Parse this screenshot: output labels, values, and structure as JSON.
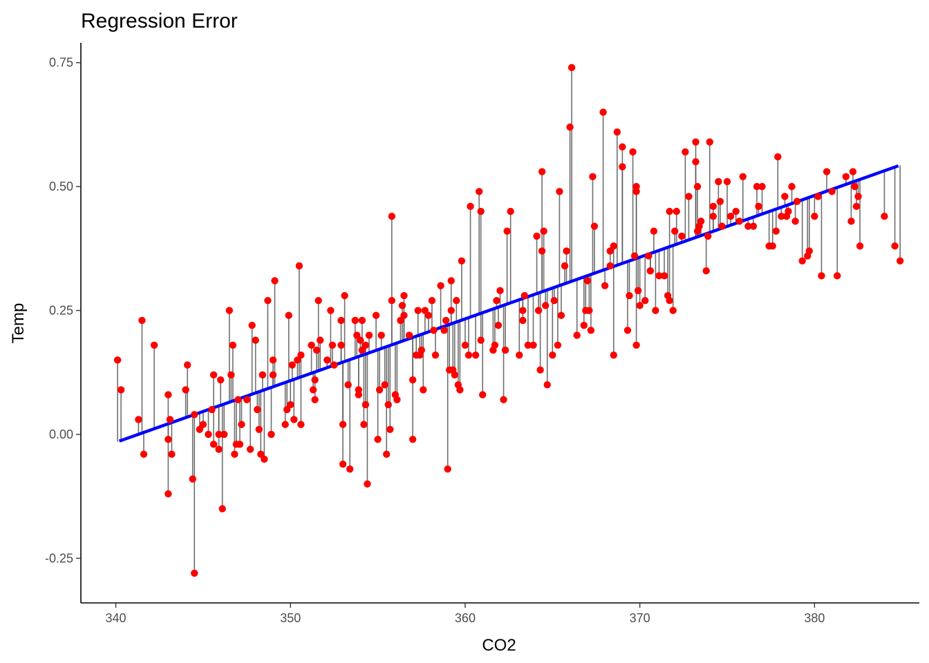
{
  "chart_data": {
    "type": "scatter",
    "title": "Regression Error",
    "xlabel": "CO2",
    "ylabel": "Temp",
    "xlim": [
      338,
      386
    ],
    "ylim": [
      -0.34,
      0.79
    ],
    "xticks": [
      340,
      350,
      360,
      370,
      380
    ],
    "xtick_labels": [
      "340",
      "350",
      "360",
      "370",
      "380"
    ],
    "yticks": [
      -0.25,
      0,
      0.25,
      0.5,
      0.75
    ],
    "ytick_labels": [
      "-0.25",
      "0.00",
      "0.25",
      "0.50",
      "0.75"
    ],
    "grid": false,
    "legend": "none",
    "point_color": "#ff0000",
    "line_color": "#0000ff",
    "residual_color": "#555555",
    "regression": {
      "slope": 0.01245,
      "intercept": -4.249,
      "x_range": [
        340.2,
        384.8
      ]
    },
    "points": [
      [
        340.1,
        0.15
      ],
      [
        340.3,
        0.09
      ],
      [
        341.3,
        0.03
      ],
      [
        341.5,
        0.23
      ],
      [
        341.6,
        -0.04
      ],
      [
        342.2,
        0.18
      ],
      [
        343.0,
        0.08
      ],
      [
        343.0,
        -0.01
      ],
      [
        343.1,
        0.03
      ],
      [
        343.2,
        -0.04
      ],
      [
        343.0,
        -0.12
      ],
      [
        344.0,
        0.09
      ],
      [
        344.1,
        0.14
      ],
      [
        344.4,
        -0.09
      ],
      [
        344.5,
        0.04
      ],
      [
        344.5,
        -0.28
      ],
      [
        344.8,
        0.01
      ],
      [
        345.0,
        0.02
      ],
      [
        345.3,
        0.0
      ],
      [
        345.5,
        0.05
      ],
      [
        345.6,
        0.12
      ],
      [
        345.6,
        -0.02
      ],
      [
        345.9,
        0.0
      ],
      [
        345.9,
        -0.03
      ],
      [
        346.0,
        0.11
      ],
      [
        346.1,
        -0.15
      ],
      [
        346.2,
        0.0
      ],
      [
        346.5,
        0.25
      ],
      [
        346.6,
        0.12
      ],
      [
        346.7,
        0.18
      ],
      [
        346.8,
        -0.04
      ],
      [
        346.9,
        -0.02
      ],
      [
        347.0,
        0.07
      ],
      [
        347.1,
        -0.02
      ],
      [
        347.2,
        0.02
      ],
      [
        347.5,
        0.07
      ],
      [
        347.7,
        -0.03
      ],
      [
        347.8,
        0.22
      ],
      [
        348.0,
        0.19
      ],
      [
        348.1,
        0.05
      ],
      [
        348.2,
        0.01
      ],
      [
        348.3,
        -0.04
      ],
      [
        348.4,
        0.12
      ],
      [
        348.5,
        -0.05
      ],
      [
        348.7,
        0.27
      ],
      [
        348.9,
        0.0
      ],
      [
        349.0,
        0.12
      ],
      [
        349.0,
        0.15
      ],
      [
        349.1,
        0.31
      ],
      [
        349.7,
        0.02
      ],
      [
        349.8,
        0.05
      ],
      [
        349.9,
        0.24
      ],
      [
        350.0,
        0.06
      ],
      [
        350.1,
        0.14
      ],
      [
        350.2,
        0.03
      ],
      [
        350.4,
        0.15
      ],
      [
        350.5,
        0.34
      ],
      [
        350.6,
        0.02
      ],
      [
        350.6,
        0.16
      ],
      [
        351.2,
        0.18
      ],
      [
        351.3,
        0.09
      ],
      [
        351.4,
        0.07
      ],
      [
        351.4,
        0.11
      ],
      [
        351.5,
        0.17
      ],
      [
        351.6,
        0.27
      ],
      [
        351.7,
        0.19
      ],
      [
        352.1,
        0.15
      ],
      [
        352.3,
        0.25
      ],
      [
        352.4,
        0.18
      ],
      [
        352.5,
        0.14
      ],
      [
        352.9,
        0.18
      ],
      [
        352.9,
        0.23
      ],
      [
        353.0,
        0.02
      ],
      [
        353.0,
        -0.06
      ],
      [
        353.1,
        0.28
      ],
      [
        353.3,
        0.1
      ],
      [
        353.4,
        -0.07
      ],
      [
        353.7,
        0.23
      ],
      [
        353.8,
        0.2
      ],
      [
        353.9,
        0.09
      ],
      [
        353.9,
        0.08
      ],
      [
        354.0,
        0.19
      ],
      [
        354.1,
        0.23
      ],
      [
        354.1,
        0.17
      ],
      [
        354.2,
        0.02
      ],
      [
        354.3,
        0.18
      ],
      [
        354.3,
        0.06
      ],
      [
        354.4,
        -0.1
      ],
      [
        354.5,
        0.2
      ],
      [
        354.9,
        0.24
      ],
      [
        355.0,
        -0.01
      ],
      [
        355.1,
        0.09
      ],
      [
        355.2,
        0.2
      ],
      [
        355.4,
        0.1
      ],
      [
        355.5,
        -0.04
      ],
      [
        355.6,
        0.06
      ],
      [
        355.7,
        0.01
      ],
      [
        355.8,
        0.44
      ],
      [
        355.8,
        0.27
      ],
      [
        356.0,
        0.08
      ],
      [
        356.1,
        0.07
      ],
      [
        356.3,
        0.23
      ],
      [
        356.4,
        0.26
      ],
      [
        356.5,
        0.28
      ],
      [
        356.5,
        0.24
      ],
      [
        356.8,
        0.2
      ],
      [
        357.0,
        0.11
      ],
      [
        357.0,
        -0.01
      ],
      [
        357.2,
        0.16
      ],
      [
        357.3,
        0.25
      ],
      [
        357.4,
        0.16
      ],
      [
        357.5,
        0.17
      ],
      [
        357.6,
        0.09
      ],
      [
        357.7,
        0.25
      ],
      [
        357.9,
        0.24
      ],
      [
        358.1,
        0.27
      ],
      [
        358.2,
        0.21
      ],
      [
        358.3,
        0.16
      ],
      [
        358.6,
        0.3
      ],
      [
        358.8,
        0.21
      ],
      [
        358.9,
        0.23
      ],
      [
        359.0,
        -0.07
      ],
      [
        359.1,
        0.13
      ],
      [
        359.2,
        0.25
      ],
      [
        359.2,
        0.31
      ],
      [
        359.3,
        0.13
      ],
      [
        359.4,
        0.12
      ],
      [
        359.5,
        0.27
      ],
      [
        359.6,
        0.1
      ],
      [
        359.7,
        0.09
      ],
      [
        359.8,
        0.35
      ],
      [
        360.0,
        0.18
      ],
      [
        360.2,
        0.16
      ],
      [
        360.3,
        0.46
      ],
      [
        360.6,
        0.16
      ],
      [
        360.8,
        0.49
      ],
      [
        360.9,
        0.45
      ],
      [
        360.9,
        0.19
      ],
      [
        361.0,
        0.08
      ],
      [
        361.6,
        0.17
      ],
      [
        361.7,
        0.18
      ],
      [
        361.8,
        0.27
      ],
      [
        361.9,
        0.22
      ],
      [
        362.0,
        0.29
      ],
      [
        362.2,
        0.07
      ],
      [
        362.3,
        0.17
      ],
      [
        362.4,
        0.41
      ],
      [
        362.6,
        0.45
      ],
      [
        363.1,
        0.16
      ],
      [
        363.3,
        0.25
      ],
      [
        363.3,
        0.23
      ],
      [
        363.4,
        0.28
      ],
      [
        363.6,
        0.18
      ],
      [
        363.9,
        0.18
      ],
      [
        364.1,
        0.4
      ],
      [
        364.2,
        0.25
      ],
      [
        364.3,
        0.13
      ],
      [
        364.4,
        0.53
      ],
      [
        364.4,
        0.37
      ],
      [
        364.5,
        0.41
      ],
      [
        364.6,
        0.26
      ],
      [
        364.7,
        0.1
      ],
      [
        365.0,
        0.16
      ],
      [
        365.1,
        0.27
      ],
      [
        365.3,
        0.18
      ],
      [
        365.4,
        0.49
      ],
      [
        365.5,
        0.24
      ],
      [
        365.7,
        0.34
      ],
      [
        365.8,
        0.37
      ],
      [
        366.0,
        0.62
      ],
      [
        366.1,
        0.74
      ],
      [
        366.4,
        0.2
      ],
      [
        366.8,
        0.22
      ],
      [
        366.9,
        0.25
      ],
      [
        367.0,
        0.31
      ],
      [
        367.1,
        0.25
      ],
      [
        367.2,
        0.21
      ],
      [
        367.3,
        0.52
      ],
      [
        367.4,
        0.42
      ],
      [
        367.9,
        0.65
      ],
      [
        368.0,
        0.3
      ],
      [
        368.3,
        0.34
      ],
      [
        368.3,
        0.37
      ],
      [
        368.5,
        0.16
      ],
      [
        368.5,
        0.38
      ],
      [
        368.7,
        0.61
      ],
      [
        369.0,
        0.54
      ],
      [
        369.0,
        0.58
      ],
      [
        369.3,
        0.21
      ],
      [
        369.4,
        0.28
      ],
      [
        369.6,
        0.57
      ],
      [
        369.7,
        0.36
      ],
      [
        369.8,
        0.5
      ],
      [
        369.8,
        0.49
      ],
      [
        369.8,
        0.18
      ],
      [
        369.9,
        0.29
      ],
      [
        370.0,
        0.26
      ],
      [
        370.3,
        0.27
      ],
      [
        370.5,
        0.36
      ],
      [
        370.6,
        0.33
      ],
      [
        370.6,
        0.33
      ],
      [
        370.8,
        0.41
      ],
      [
        370.9,
        0.25
      ],
      [
        371.1,
        0.32
      ],
      [
        371.4,
        0.32
      ],
      [
        371.6,
        0.28
      ],
      [
        371.7,
        0.27
      ],
      [
        371.7,
        0.45
      ],
      [
        371.9,
        0.25
      ],
      [
        372.0,
        0.41
      ],
      [
        372.1,
        0.45
      ],
      [
        372.4,
        0.4
      ],
      [
        372.6,
        0.57
      ],
      [
        372.8,
        0.48
      ],
      [
        373.2,
        0.55
      ],
      [
        373.2,
        0.59
      ],
      [
        373.3,
        0.41
      ],
      [
        373.3,
        0.5
      ],
      [
        373.4,
        0.42
      ],
      [
        373.5,
        0.43
      ],
      [
        373.8,
        0.33
      ],
      [
        373.9,
        0.4
      ],
      [
        374.0,
        0.59
      ],
      [
        374.2,
        0.46
      ],
      [
        374.2,
        0.44
      ],
      [
        374.5,
        0.51
      ],
      [
        374.6,
        0.47
      ],
      [
        374.7,
        0.42
      ],
      [
        375.0,
        0.51
      ],
      [
        375.2,
        0.44
      ],
      [
        375.5,
        0.45
      ],
      [
        375.7,
        0.43
      ],
      [
        375.9,
        0.52
      ],
      [
        376.2,
        0.42
      ],
      [
        376.5,
        0.42
      ],
      [
        376.7,
        0.5
      ],
      [
        376.8,
        0.46
      ],
      [
        377.0,
        0.5
      ],
      [
        377.4,
        0.38
      ],
      [
        377.6,
        0.38
      ],
      [
        377.8,
        0.41
      ],
      [
        377.9,
        0.56
      ],
      [
        378.1,
        0.44
      ],
      [
        378.3,
        0.48
      ],
      [
        378.4,
        0.44
      ],
      [
        378.5,
        0.45
      ],
      [
        378.7,
        0.5
      ],
      [
        378.9,
        0.43
      ],
      [
        379.0,
        0.47
      ],
      [
        379.3,
        0.35
      ],
      [
        379.6,
        0.36
      ],
      [
        379.7,
        0.37
      ],
      [
        380.0,
        0.44
      ],
      [
        380.2,
        0.48
      ],
      [
        380.4,
        0.32
      ],
      [
        380.7,
        0.53
      ],
      [
        381.0,
        0.49
      ],
      [
        381.3,
        0.32
      ],
      [
        381.8,
        0.52
      ],
      [
        382.1,
        0.43
      ],
      [
        382.2,
        0.53
      ],
      [
        382.3,
        0.5
      ],
      [
        382.4,
        0.46
      ],
      [
        382.5,
        0.48
      ],
      [
        382.6,
        0.38
      ],
      [
        384.0,
        0.44
      ],
      [
        384.6,
        0.38
      ],
      [
        384.9,
        0.35
      ]
    ]
  }
}
